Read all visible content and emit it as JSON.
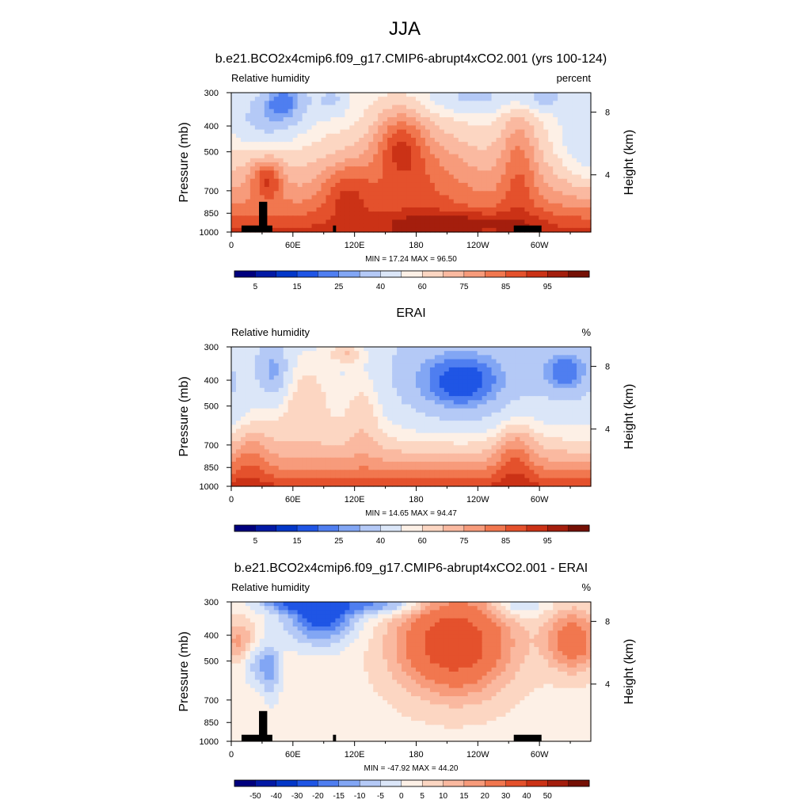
{
  "figure": {
    "title": "JJA"
  },
  "colors": {
    "rh": [
      "#00007e",
      "#0219a5",
      "#0337c8",
      "#1f55e5",
      "#4f7ef0",
      "#82a6f4",
      "#b4c9f6",
      "#dbe6f8",
      "#fdf0e6",
      "#fcd6c2",
      "#fab9a0",
      "#f79b7b",
      "#f1774f",
      "#e4512c",
      "#cb3216",
      "#a41e0d",
      "#751005"
    ],
    "diff": [
      "#00007e",
      "#0219a5",
      "#0337c8",
      "#1f55e5",
      "#4f7ef0",
      "#82a6f4",
      "#b4c9f6",
      "#dbe6f8",
      "#fdf0e6",
      "#fcd6c2",
      "#fab9a0",
      "#f79b7b",
      "#f1774f",
      "#e4512c",
      "#cb3216",
      "#a41e0d",
      "#751005"
    ]
  },
  "chart_data": [
    {
      "type": "heatmap",
      "title": "b.e21.BCO2x4cmip6.f09_g17.CMIP6-abrupt4xCO2.001 (yrs 100-124)",
      "left_label": "Relative humidity",
      "right_label": "percent",
      "ylabel": "Pressure (mb)",
      "y2label": "Height (km)",
      "x_ticks": [
        "0",
        "60E",
        "120E",
        "180",
        "120W",
        "60W"
      ],
      "x_tick_lon": [
        0,
        60,
        120,
        180,
        240,
        300
      ],
      "x_range": [
        0,
        350
      ],
      "y_ticks": [
        "300",
        "400",
        "500",
        "700",
        "850",
        "1000"
      ],
      "y_tick_p": [
        300,
        400,
        500,
        700,
        850,
        1000
      ],
      "y_range": [
        300,
        1000
      ],
      "y2_ticks": [
        "8",
        "4"
      ],
      "y2_tick_p": [
        355,
        610
      ],
      "stats": "MIN =  17.24  MAX =  96.50",
      "colorbar_labels": [
        "5",
        "15",
        "25",
        "40",
        "60",
        "75",
        "85",
        "95"
      ],
      "colorbar_label_index": [
        1,
        3,
        5,
        7,
        9,
        11,
        13,
        15
      ],
      "field_id": "model",
      "has_topo": true
    },
    {
      "type": "heatmap",
      "title": "ERAI",
      "left_label": "Relative humidity",
      "right_label": "%",
      "ylabel": "Pressure (mb)",
      "y2label": "Height (km)",
      "x_ticks": [
        "0",
        "60E",
        "120E",
        "180",
        "120W",
        "60W"
      ],
      "x_tick_lon": [
        0,
        60,
        120,
        180,
        240,
        300
      ],
      "x_range": [
        0,
        350
      ],
      "y_ticks": [
        "300",
        "400",
        "500",
        "700",
        "850",
        "1000"
      ],
      "y_tick_p": [
        300,
        400,
        500,
        700,
        850,
        1000
      ],
      "y_range": [
        300,
        1000
      ],
      "y2_ticks": [
        "8",
        "4"
      ],
      "y2_tick_p": [
        355,
        610
      ],
      "stats": "MIN =  14.65  MAX =  94.47",
      "colorbar_labels": [
        "5",
        "15",
        "25",
        "40",
        "60",
        "75",
        "85",
        "95"
      ],
      "colorbar_label_index": [
        1,
        3,
        5,
        7,
        9,
        11,
        13,
        15
      ],
      "field_id": "obs",
      "has_topo": false
    },
    {
      "type": "heatmap",
      "title": "b.e21.BCO2x4cmip6.f09_g17.CMIP6-abrupt4xCO2.001 - ERAI",
      "left_label": "Relative humidity",
      "right_label": "%",
      "ylabel": "Pressure (mb)",
      "y2label": "Height (km)",
      "x_ticks": [
        "0",
        "60E",
        "120E",
        "180",
        "120W",
        "60W"
      ],
      "x_tick_lon": [
        0,
        60,
        120,
        180,
        240,
        300
      ],
      "x_range": [
        0,
        350
      ],
      "y_ticks": [
        "300",
        "400",
        "500",
        "700",
        "850",
        "1000"
      ],
      "y_tick_p": [
        300,
        400,
        500,
        700,
        850,
        1000
      ],
      "y_range": [
        300,
        1000
      ],
      "y2_ticks": [
        "8",
        "4"
      ],
      "y2_tick_p": [
        355,
        610
      ],
      "stats": "MIN = -47.92  MAX =  44.20",
      "colorbar_labels": [
        "-50",
        "-40",
        "-30",
        "-20",
        "-15",
        "-10",
        "-5",
        "0",
        "5",
        "10",
        "15",
        "20",
        "30",
        "40",
        "50"
      ],
      "colorbar_label_index": [
        1,
        2,
        3,
        4,
        5,
        6,
        7,
        8,
        9,
        10,
        11,
        12,
        13,
        14,
        15
      ],
      "field_id": "diff",
      "has_topo": true
    }
  ]
}
